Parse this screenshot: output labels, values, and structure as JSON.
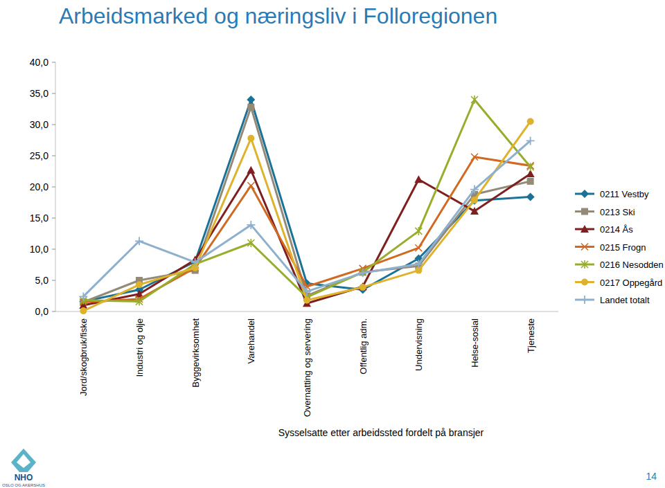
{
  "chart_data": {
    "type": "line",
    "title": "Arbeidsmarked og næringsliv i Folloregionen",
    "x_label": "Sysselsatte etter arbeidssted fordelt på bransjer",
    "categories": [
      "Jord/skogbruk/fiske",
      "Industri og olje",
      "Byggevirksomhet",
      "Varehandel",
      "Overnatting og servering",
      "Offentlig adm.",
      "Undervisning",
      "Helse-sosial",
      "Tjeneste"
    ],
    "series": [
      {
        "name": "0211 Vestby",
        "color": "#1b7196",
        "marker": "diamond",
        "values": [
          1.6,
          3.5,
          8.0,
          34.0,
          4.5,
          3.5,
          8.5,
          17.8,
          18.4
        ]
      },
      {
        "name": "0213 Ski",
        "color": "#948a78",
        "marker": "square",
        "values": [
          1.5,
          5.0,
          6.6,
          32.8,
          2.5,
          6.3,
          7.3,
          18.8,
          20.9
        ]
      },
      {
        "name": "0214 Ås",
        "color": "#7f1f1f",
        "marker": "triangle",
        "values": [
          1.0,
          2.8,
          8.3,
          22.7,
          1.3,
          4.0,
          21.2,
          16.1,
          22.1
        ]
      },
      {
        "name": "0215 Frogn",
        "color": "#d06a22",
        "marker": "x",
        "values": [
          1.5,
          2.0,
          7.0,
          20.2,
          4.0,
          6.9,
          10.2,
          24.8,
          23.4
        ]
      },
      {
        "name": "0216 Nesodden",
        "color": "#98ad2b",
        "marker": "star",
        "values": [
          1.8,
          1.6,
          7.6,
          11.0,
          2.3,
          6.3,
          12.9,
          34.0,
          23.2
        ]
      },
      {
        "name": "0217 Oppegård",
        "color": "#dfb22c",
        "marker": "circle",
        "values": [
          0.1,
          4.3,
          7.0,
          27.8,
          1.8,
          3.9,
          6.6,
          17.9,
          30.5
        ]
      },
      {
        "name": "Landet totalt",
        "color": "#8eb0cc",
        "marker": "plus",
        "values": [
          2.4,
          11.3,
          7.9,
          13.9,
          3.2,
          6.2,
          7.6,
          19.6,
          27.4
        ]
      }
    ],
    "ylim": [
      0,
      40
    ],
    "yticks": [
      {
        "value": 0,
        "label": "0,0"
      },
      {
        "value": 5,
        "label": "5,0"
      },
      {
        "value": 10,
        "label": "10,0"
      },
      {
        "value": 15,
        "label": "15,0"
      },
      {
        "value": 20,
        "label": "20,0"
      },
      {
        "value": 25,
        "label": "25,0"
      },
      {
        "value": 30,
        "label": "30,0"
      },
      {
        "value": 35,
        "label": "35,0"
      },
      {
        "value": 40,
        "label": "40,0"
      }
    ],
    "grid": false,
    "legend": "right"
  },
  "footer": {
    "logo_text": "NHO",
    "logo_subtitle": "OSLO OG AKERSHUS",
    "page_number": "14"
  }
}
